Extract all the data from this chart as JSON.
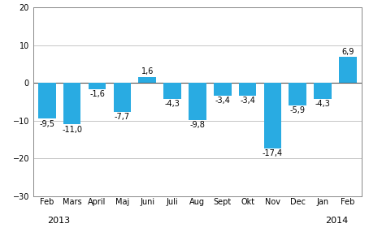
{
  "categories": [
    "Feb",
    "Mars",
    "April",
    "Maj",
    "Juni",
    "Juli",
    "Aug",
    "Sept",
    "Okt",
    "Nov",
    "Dec",
    "Jan",
    "Feb"
  ],
  "values": [
    -9.5,
    -11.0,
    -1.6,
    -7.7,
    1.6,
    -4.3,
    -9.8,
    -3.4,
    -3.4,
    -17.4,
    -5.9,
    -4.3,
    6.9
  ],
  "bar_color": "#29abe2",
  "ylim": [
    -30,
    20
  ],
  "yticks": [
    -30,
    -20,
    -10,
    0,
    10,
    20
  ],
  "background_color": "#ffffff",
  "grid_color": "#bbbbbb",
  "label_fontsize": 7.0,
  "value_fontsize": 7.0,
  "year_fontsize": 8.0,
  "year_2013_idx": 0,
  "year_2014_idx": 12,
  "year_2013": "2013",
  "year_2014": "2014"
}
